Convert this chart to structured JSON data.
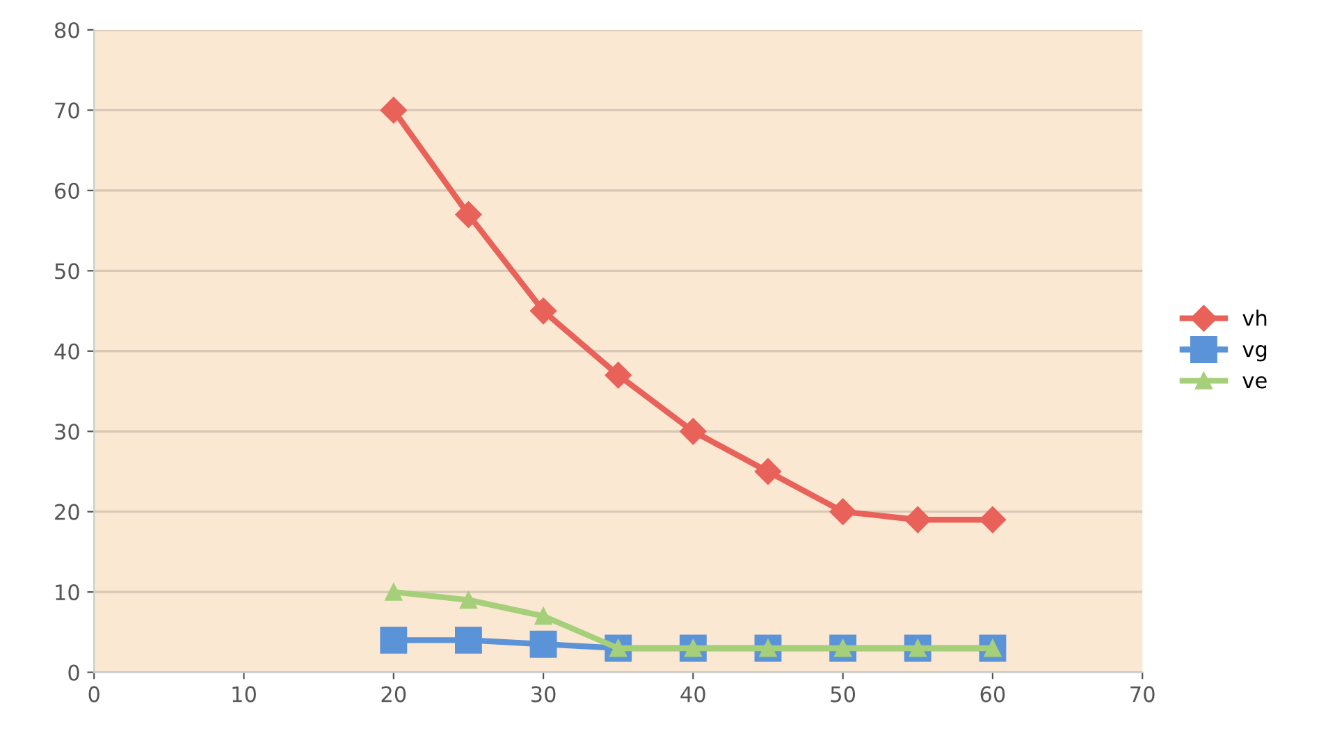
{
  "chart_data": {
    "type": "line",
    "x": [
      20,
      25,
      30,
      35,
      40,
      45,
      50,
      55,
      60
    ],
    "series": [
      {
        "name": "vh",
        "color": "#e8625a",
        "marker": "diamond",
        "values": [
          70,
          57,
          45,
          37,
          30,
          25,
          20,
          19,
          19
        ]
      },
      {
        "name": "vg",
        "color": "#5b93d8",
        "marker": "square",
        "values": [
          4,
          4,
          3.5,
          3,
          3,
          3,
          3,
          3,
          3
        ]
      },
      {
        "name": "ve",
        "color": "#a6cf7a",
        "marker": "triangle",
        "values": [
          10,
          9,
          7,
          3,
          3,
          3,
          3,
          3,
          3
        ]
      }
    ],
    "xlim": [
      0,
      70
    ],
    "xticks": [
      0,
      10,
      20,
      30,
      40,
      50,
      60,
      70
    ],
    "ylim": [
      0,
      80
    ],
    "yticks": [
      0,
      10,
      20,
      30,
      40,
      50,
      60,
      70,
      80
    ],
    "grid": "y",
    "legend": "right",
    "line_style": "solid"
  }
}
